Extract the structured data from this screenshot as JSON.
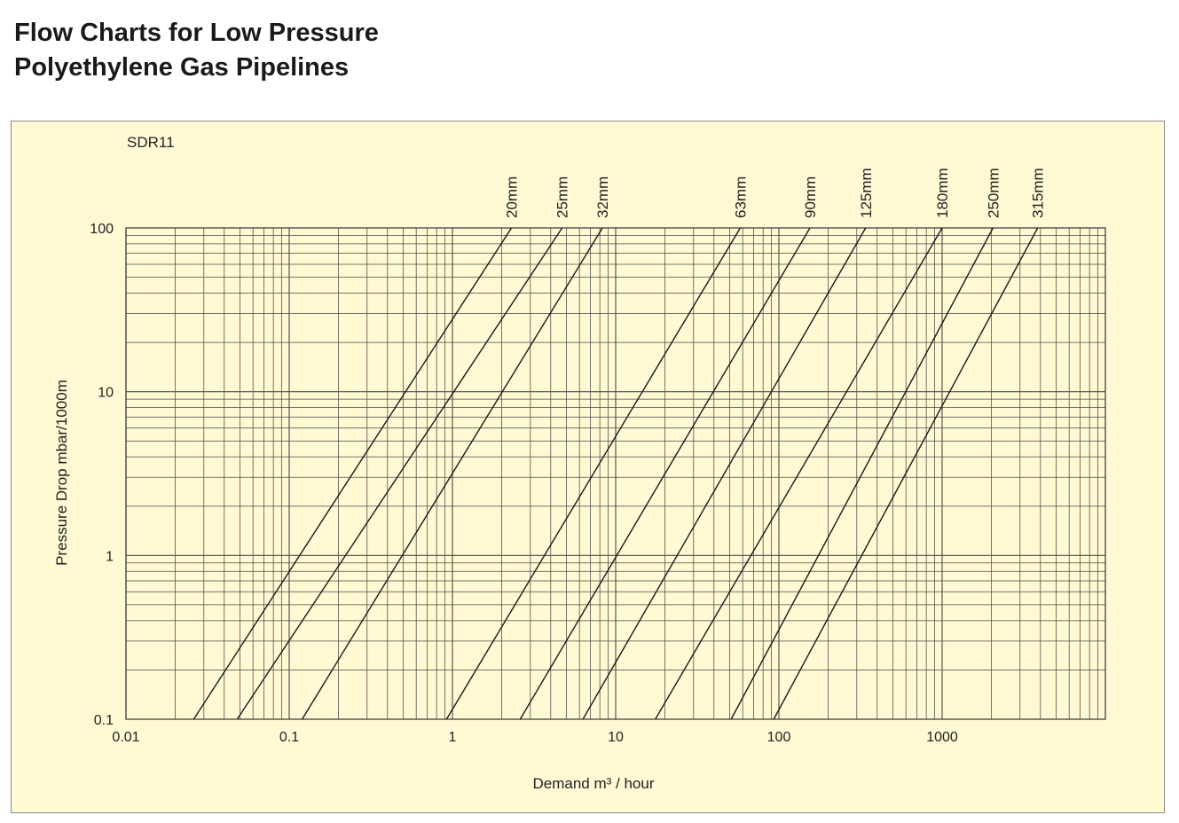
{
  "page": {
    "title_line1": "Flow Charts for Low Pressure",
    "title_line2": "Polyethylene Gas Pipelines"
  },
  "chart_data": {
    "type": "line",
    "subtitle": "SDR11",
    "xlabel": "Demand m³ / hour",
    "ylabel": "Pressure Drop mbar/1000m",
    "x_scale": "log",
    "y_scale": "log",
    "xlim": [
      0.01,
      10000
    ],
    "ylim": [
      0.1,
      100
    ],
    "x_ticks": [
      {
        "value": 0.01,
        "label": "0.01"
      },
      {
        "value": 0.1,
        "label": "0.1"
      },
      {
        "value": 1,
        "label": "1"
      },
      {
        "value": 10,
        "label": "10"
      },
      {
        "value": 100,
        "label": "100"
      },
      {
        "value": 1000,
        "label": "1000"
      }
    ],
    "y_ticks": [
      {
        "value": 0.1,
        "label": "0.1"
      },
      {
        "value": 1,
        "label": "1"
      },
      {
        "value": 10,
        "label": "10"
      },
      {
        "value": 100,
        "label": "100"
      }
    ],
    "grid": true,
    "legend": "labels at top of each line",
    "line_color": "#1a1a1a",
    "background_color": "#fff9d4",
    "series": [
      {
        "name": "20mm",
        "x": [
          0.026,
          2.3
        ],
        "y": [
          0.1,
          100
        ]
      },
      {
        "name": "25mm",
        "x": [
          0.048,
          4.7
        ],
        "y": [
          0.1,
          100
        ]
      },
      {
        "name": "32mm",
        "x": [
          0.12,
          8.3
        ],
        "y": [
          0.1,
          100
        ]
      },
      {
        "name": "63mm",
        "x": [
          0.92,
          58
        ],
        "y": [
          0.1,
          100
        ]
      },
      {
        "name": "90mm",
        "x": [
          2.6,
          155
        ],
        "y": [
          0.1,
          100
        ]
      },
      {
        "name": "125mm",
        "x": [
          6.3,
          340
        ],
        "y": [
          0.1,
          100
        ]
      },
      {
        "name": "180mm",
        "x": [
          17.5,
          1000
        ],
        "y": [
          0.1,
          100
        ]
      },
      {
        "name": "250mm",
        "x": [
          51,
          2050
        ],
        "y": [
          0.1,
          100
        ]
      },
      {
        "name": "315mm",
        "x": [
          93,
          3850
        ],
        "y": [
          0.1,
          100
        ]
      }
    ]
  }
}
